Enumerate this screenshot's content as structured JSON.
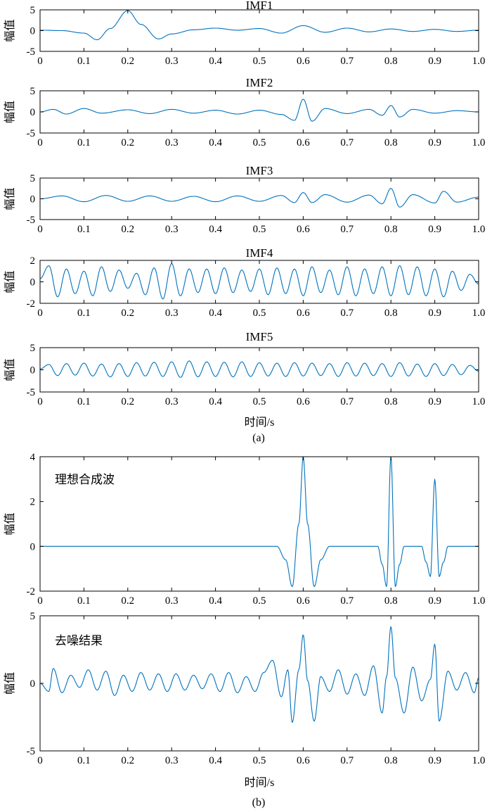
{
  "figure": {
    "caption_a": "(a)",
    "caption_b": "(b)"
  },
  "chart_data": [
    {
      "id": "imf1",
      "type": "line",
      "title": "IMF1",
      "xlabel": "",
      "ylabel": "幅值",
      "xlim": [
        0,
        1
      ],
      "ylim": [
        -5,
        5
      ],
      "yticks": [
        -5,
        0,
        5
      ],
      "xticks": [
        0,
        0.1,
        0.2,
        0.3,
        0.4,
        0.5,
        0.6,
        0.7,
        0.8,
        0.9,
        1.0
      ],
      "xtick_labels": [
        "0",
        "0.1",
        "0.2",
        "0.3",
        "0.4",
        "0.5",
        "0.6",
        "0.7",
        "0.8",
        "0.9",
        "1.0"
      ],
      "grid": false,
      "series": [
        {
          "color": "#0072BD",
          "x": [
            0,
            0.05,
            0.1,
            0.13,
            0.16,
            0.2,
            0.23,
            0.27,
            0.3,
            0.35,
            0.4,
            0.45,
            0.5,
            0.55,
            0.6,
            0.65,
            0.7,
            0.75,
            0.8,
            0.85,
            0.9,
            0.95,
            1.0
          ],
          "values": [
            0.1,
            0,
            -0.6,
            -2.2,
            0.5,
            4.8,
            1.5,
            -2.0,
            -0.8,
            0.2,
            0.6,
            0.1,
            0.5,
            -0.6,
            1.2,
            -0.4,
            0.6,
            -0.3,
            0.4,
            -0.2,
            0.3,
            -0.2,
            0.1
          ]
        }
      ]
    },
    {
      "id": "imf2",
      "type": "line",
      "title": "IMF2",
      "xlabel": "",
      "ylabel": "幅值",
      "xlim": [
        0,
        1
      ],
      "ylim": [
        -5,
        5
      ],
      "yticks": [
        -5,
        0,
        5
      ],
      "xticks": [
        0,
        0.1,
        0.2,
        0.3,
        0.4,
        0.5,
        0.6,
        0.7,
        0.8,
        0.9,
        1.0
      ],
      "xtick_labels": [
        "0",
        "0.1",
        "0.2",
        "0.3",
        "0.4",
        "0.5",
        "0.6",
        "0.7",
        "0.8",
        "0.9",
        "1.0"
      ],
      "grid": false,
      "series": [
        {
          "color": "#0072BD",
          "x": [
            0,
            0.03,
            0.06,
            0.1,
            0.14,
            0.2,
            0.25,
            0.3,
            0.35,
            0.4,
            0.45,
            0.5,
            0.55,
            0.58,
            0.6,
            0.62,
            0.65,
            0.7,
            0.75,
            0.78,
            0.8,
            0.82,
            0.85,
            0.9,
            0.95,
            1.0
          ],
          "values": [
            0,
            0.6,
            -0.5,
            0.8,
            -0.3,
            0.5,
            -0.4,
            0.6,
            -0.3,
            0.4,
            -0.5,
            0.4,
            -0.6,
            -2.0,
            3.0,
            -2.2,
            0.8,
            -0.4,
            0.6,
            -0.8,
            1.5,
            -1.2,
            0.6,
            -0.3,
            0.3,
            0
          ]
        }
      ]
    },
    {
      "id": "imf3",
      "type": "line",
      "title": "IMF3",
      "xlabel": "",
      "ylabel": "幅值",
      "xlim": [
        0,
        1
      ],
      "ylim": [
        -5,
        5
      ],
      "yticks": [
        -5,
        0,
        5
      ],
      "xticks": [
        0,
        0.1,
        0.2,
        0.3,
        0.4,
        0.5,
        0.6,
        0.7,
        0.8,
        0.9,
        1.0
      ],
      "xtick_labels": [
        "0",
        "0.1",
        "0.2",
        "0.3",
        "0.4",
        "0.5",
        "0.6",
        "0.7",
        "0.8",
        "0.9",
        "1.0"
      ],
      "grid": false,
      "series": [
        {
          "color": "#0072BD",
          "x": [
            0,
            0.05,
            0.1,
            0.15,
            0.2,
            0.25,
            0.3,
            0.35,
            0.4,
            0.45,
            0.5,
            0.55,
            0.58,
            0.6,
            0.62,
            0.65,
            0.7,
            0.75,
            0.78,
            0.8,
            0.82,
            0.85,
            0.9,
            0.92,
            0.95,
            1.0
          ],
          "values": [
            0,
            0.7,
            -0.7,
            0.8,
            -0.6,
            0.7,
            -0.6,
            0.6,
            -0.7,
            0.7,
            -0.6,
            0.8,
            -0.9,
            1.5,
            -0.9,
            1.0,
            -0.8,
            0.9,
            -1.2,
            2.5,
            -2.0,
            1.0,
            -1.0,
            1.8,
            -0.8,
            0.4
          ]
        }
      ]
    },
    {
      "id": "imf4",
      "type": "line",
      "title": "IMF4",
      "xlabel": "",
      "ylabel": "幅值",
      "xlim": [
        0,
        1
      ],
      "ylim": [
        -2,
        2
      ],
      "yticks": [
        -2,
        0,
        2
      ],
      "xticks": [
        0,
        0.1,
        0.2,
        0.3,
        0.4,
        0.5,
        0.6,
        0.7,
        0.8,
        0.9,
        1.0
      ],
      "xtick_labels": [
        "0",
        "0.1",
        "0.2",
        "0.3",
        "0.4",
        "0.5",
        "0.6",
        "0.7",
        "0.8",
        "0.9",
        "1.0"
      ],
      "grid": false,
      "series": [
        {
          "color": "#0072BD",
          "x": [
            0,
            0.02,
            0.04,
            0.06,
            0.08,
            0.1,
            0.12,
            0.14,
            0.16,
            0.18,
            0.2,
            0.22,
            0.24,
            0.26,
            0.28,
            0.3,
            0.32,
            0.34,
            0.36,
            0.38,
            0.4,
            0.42,
            0.44,
            0.46,
            0.48,
            0.5,
            0.52,
            0.54,
            0.56,
            0.58,
            0.6,
            0.62,
            0.64,
            0.66,
            0.68,
            0.7,
            0.72,
            0.74,
            0.76,
            0.78,
            0.8,
            0.82,
            0.84,
            0.86,
            0.88,
            0.9,
            0.92,
            0.94,
            0.96,
            0.98,
            1.0
          ],
          "values": [
            0.3,
            1.5,
            -1.4,
            1.2,
            -1.1,
            1.0,
            -1.3,
            1.4,
            -0.9,
            1.1,
            -0.6,
            0.8,
            -1.2,
            1.3,
            -1.6,
            1.7,
            -1.3,
            1.2,
            -1.0,
            1.2,
            -1.1,
            1.3,
            -1.0,
            1.1,
            -0.9,
            1.2,
            -1.2,
            1.3,
            -1.1,
            1.2,
            -1.3,
            1.4,
            -1.0,
            1.1,
            -1.2,
            1.4,
            -1.3,
            1.2,
            -1.1,
            1.4,
            -1.3,
            1.5,
            -1.2,
            1.4,
            -1.3,
            1.2,
            -1.4,
            1.0,
            -0.8,
            0.7,
            -0.2
          ]
        }
      ]
    },
    {
      "id": "imf5",
      "type": "line",
      "title": "IMF5",
      "xlabel": "时间/s",
      "ylabel": "幅值",
      "xlim": [
        0,
        1
      ],
      "ylim": [
        -5,
        5
      ],
      "yticks": [
        -5,
        0,
        5
      ],
      "xticks": [
        0,
        0.1,
        0.2,
        0.3,
        0.4,
        0.5,
        0.6,
        0.7,
        0.8,
        0.9,
        1.0
      ],
      "xtick_labels": [
        "0",
        "0.1",
        "0.2",
        "0.3",
        "0.4",
        "0.5",
        "0.6",
        "0.7",
        "0.8",
        "0.9",
        "1.0"
      ],
      "grid": false,
      "series": [
        {
          "color": "#0072BD",
          "x": [
            0,
            0.02,
            0.04,
            0.06,
            0.08,
            0.1,
            0.12,
            0.14,
            0.16,
            0.18,
            0.2,
            0.22,
            0.24,
            0.26,
            0.28,
            0.3,
            0.32,
            0.34,
            0.36,
            0.38,
            0.4,
            0.42,
            0.44,
            0.46,
            0.48,
            0.5,
            0.52,
            0.54,
            0.56,
            0.58,
            0.6,
            0.62,
            0.64,
            0.66,
            0.68,
            0.7,
            0.72,
            0.74,
            0.76,
            0.78,
            0.8,
            0.82,
            0.84,
            0.86,
            0.88,
            0.9,
            0.92,
            0.94,
            0.96,
            0.98,
            1.0
          ],
          "values": [
            0.2,
            1.2,
            -1.3,
            1.4,
            -1.2,
            1.5,
            -1.4,
            1.3,
            -1.6,
            1.4,
            -1.5,
            1.6,
            -1.4,
            1.7,
            -1.5,
            1.8,
            -1.7,
            2.0,
            -1.6,
            1.8,
            -1.5,
            1.7,
            -1.6,
            1.8,
            -1.5,
            1.6,
            -1.4,
            1.5,
            -1.5,
            1.6,
            -1.4,
            1.5,
            -1.3,
            1.4,
            -1.5,
            1.6,
            -1.4,
            1.5,
            -1.3,
            1.4,
            -1.5,
            1.6,
            -1.4,
            1.3,
            -1.5,
            1.4,
            -1.3,
            1.2,
            -1.1,
            1.0,
            -0.3
          ]
        }
      ]
    },
    {
      "id": "ideal",
      "type": "line",
      "title": "",
      "xlabel": "",
      "ylabel": "幅值",
      "annotation": "理想合成波",
      "xlim": [
        0,
        1
      ],
      "ylim": [
        -2,
        4
      ],
      "yticks": [
        -2,
        0,
        2,
        4
      ],
      "xticks": [
        0,
        0.1,
        0.2,
        0.3,
        0.4,
        0.5,
        0.6,
        0.7,
        0.8,
        0.9,
        1.0
      ],
      "xtick_labels": [
        "0",
        "0.1",
        "0.2",
        "0.3",
        "0.4",
        "0.5",
        "0.6",
        "0.7",
        "0.8",
        "0.9",
        "1.0"
      ],
      "grid": false,
      "series": [
        {
          "color": "#0072BD",
          "x": [
            0,
            0.5,
            0.54,
            0.56,
            0.575,
            0.59,
            0.6,
            0.61,
            0.625,
            0.64,
            0.66,
            0.7,
            0.77,
            0.78,
            0.79,
            0.8,
            0.81,
            0.82,
            0.83,
            0.87,
            0.88,
            0.89,
            0.9,
            0.91,
            0.92,
            0.93,
            1.0
          ],
          "values": [
            0,
            0,
            0,
            -0.6,
            -1.8,
            1.0,
            4.0,
            1.0,
            -1.8,
            -0.6,
            0,
            0,
            0,
            -0.8,
            -1.8,
            4.0,
            -1.8,
            -0.8,
            0,
            0,
            -0.7,
            -1.35,
            3.0,
            -1.35,
            -0.7,
            0,
            0
          ]
        }
      ]
    },
    {
      "id": "denoised",
      "type": "line",
      "title": "",
      "xlabel": "时间/s",
      "ylabel": "幅值",
      "annotation": "去噪结果",
      "xlim": [
        0,
        1
      ],
      "ylim": [
        -5,
        5
      ],
      "yticks": [
        -5,
        0,
        5
      ],
      "xticks": [
        0,
        0.1,
        0.2,
        0.3,
        0.4,
        0.5,
        0.6,
        0.7,
        0.8,
        0.9,
        1.0
      ],
      "xtick_labels": [
        "0",
        "0.1",
        "0.2",
        "0.3",
        "0.4",
        "0.5",
        "0.6",
        "0.7",
        "0.8",
        "0.9",
        "1.0"
      ],
      "grid": false,
      "series": [
        {
          "color": "#0072BD",
          "x": [
            0,
            0.02,
            0.03,
            0.05,
            0.07,
            0.09,
            0.11,
            0.13,
            0.15,
            0.17,
            0.19,
            0.21,
            0.23,
            0.25,
            0.27,
            0.29,
            0.31,
            0.33,
            0.35,
            0.37,
            0.39,
            0.41,
            0.43,
            0.45,
            0.47,
            0.49,
            0.51,
            0.53,
            0.55,
            0.565,
            0.575,
            0.59,
            0.6,
            0.61,
            0.625,
            0.64,
            0.66,
            0.68,
            0.7,
            0.72,
            0.74,
            0.76,
            0.78,
            0.79,
            0.8,
            0.81,
            0.83,
            0.85,
            0.87,
            0.89,
            0.9,
            0.91,
            0.93,
            0.95,
            0.97,
            0.99,
            1.0
          ],
          "values": [
            0,
            -0.6,
            1.1,
            -0.7,
            0.6,
            -0.3,
            1.0,
            -0.5,
            0.9,
            -0.9,
            0.6,
            -0.6,
            0.8,
            -0.5,
            0.7,
            -0.6,
            0.7,
            -0.5,
            0.6,
            -0.4,
            0.7,
            -0.6,
            0.8,
            -0.7,
            0.5,
            -0.6,
            0.8,
            1.7,
            -1.0,
            1.0,
            -2.9,
            1.0,
            3.6,
            0.2,
            -2.8,
            0.5,
            -0.6,
            1.0,
            -0.8,
            0.7,
            -0.9,
            1.3,
            -2.2,
            0.5,
            4.2,
            0.4,
            -2.2,
            1.2,
            -1.3,
            0.3,
            2.9,
            -2.8,
            0.9,
            -0.5,
            0.8,
            -0.7,
            0.4
          ]
        }
      ]
    }
  ]
}
